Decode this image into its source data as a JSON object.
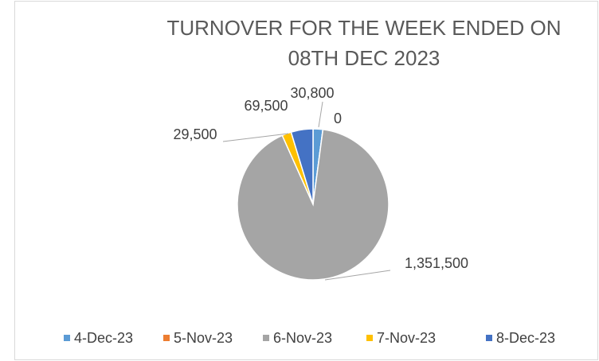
{
  "chart_data": {
    "type": "pie",
    "title": "TURNOVER FOR THE WEEK ENDED ON 08TH DEC 2023",
    "categories": [
      "4-Dec-23",
      "5-Nov-23",
      "6-Nov-23",
      "7-Nov-23",
      "8-Dec-23"
    ],
    "values": [
      30800,
      0,
      1351500,
      29500,
      69500
    ],
    "value_labels": [
      "30,800",
      "0",
      "1,351,500",
      "29,500",
      "69,500"
    ],
    "colors": [
      "#5b9bd5",
      "#ed7d31",
      "#a5a5a5",
      "#ffc000",
      "#4472c4"
    ],
    "legend": "bottom"
  }
}
